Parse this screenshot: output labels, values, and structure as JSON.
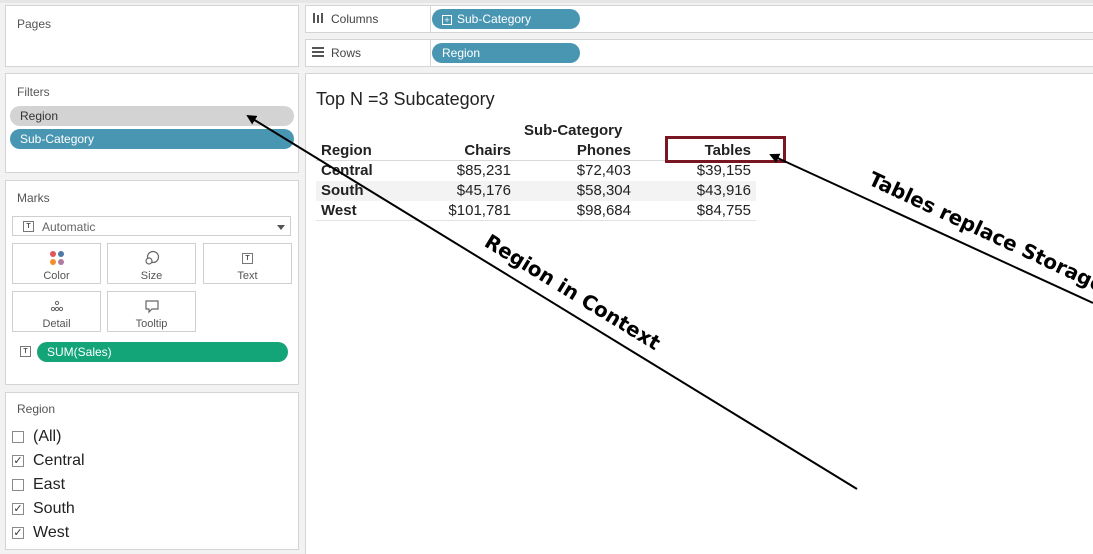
{
  "pages_panel": {
    "title": "Pages"
  },
  "filters_panel": {
    "title": "Filters",
    "pills": [
      "Region",
      "Sub-Category"
    ]
  },
  "marks_panel": {
    "title": "Marks",
    "mark_type": "Automatic",
    "buttons": {
      "color": "Color",
      "size": "Size",
      "text": "Text",
      "detail": "Detail",
      "tooltip": "Tooltip"
    },
    "measure_pill": "SUM(Sales)"
  },
  "region_filter": {
    "title": "Region",
    "items": [
      {
        "label": "(All)",
        "checked": false
      },
      {
        "label": "Central",
        "checked": true
      },
      {
        "label": "East",
        "checked": false
      },
      {
        "label": "South",
        "checked": true
      },
      {
        "label": "West",
        "checked": true
      }
    ]
  },
  "shelves": {
    "columns_label": "Columns",
    "columns_pill": "Sub-Category",
    "rows_label": "Rows",
    "rows_pill": "Region"
  },
  "view": {
    "title": "Top N =3 Subcategory",
    "column_group_header": "Sub-Category",
    "row_header": "Region",
    "columns": [
      "Chairs",
      "Phones",
      "Tables"
    ],
    "rows": [
      {
        "region": "Central",
        "values": [
          "$85,231",
          "$72,403",
          "$39,155"
        ]
      },
      {
        "region": "South",
        "values": [
          "$45,176",
          "$58,304",
          "$43,916"
        ]
      },
      {
        "region": "West",
        "values": [
          "$101,781",
          "$98,684",
          "$84,755"
        ]
      }
    ]
  },
  "annotations": {
    "region_context": "Region in Context",
    "tables_replace": "Tables replace Storage"
  },
  "colors": {
    "pill_blue": "#4996b2",
    "pill_green": "#13a477",
    "pill_gray": "#d3d3d3",
    "highlight_box": "#7a1522",
    "stripe": "#f3f3f3"
  }
}
